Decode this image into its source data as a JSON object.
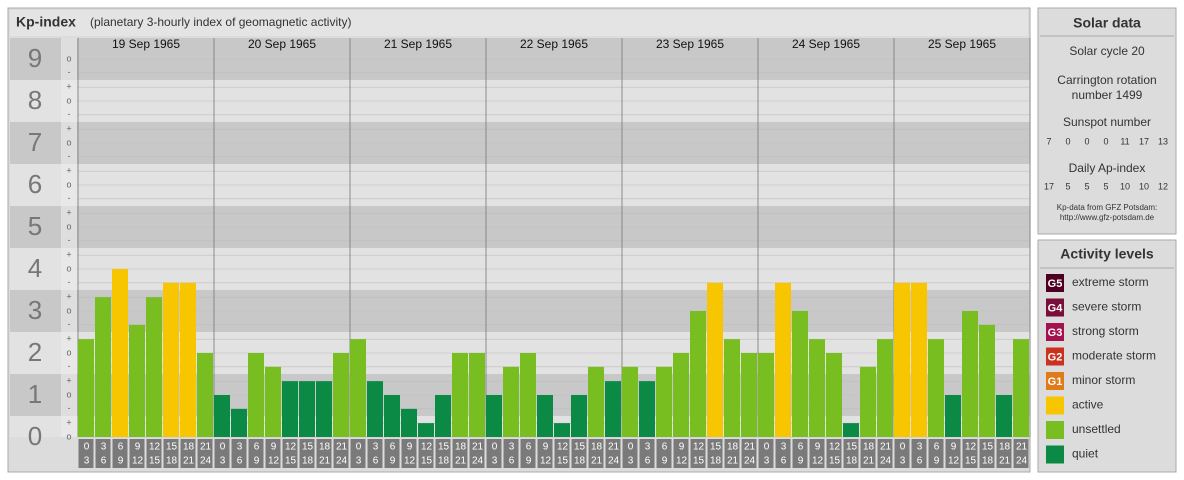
{
  "chart_data": {
    "type": "bar",
    "title": "Kp-index",
    "subtitle": "(planetary 3-hourly index of geomagnetic activity)",
    "ylim": [
      0,
      9.5
    ],
    "yticks": [
      {
        "value": 0,
        "label": "o"
      },
      {
        "value": 0.33,
        "label": "+"
      },
      {
        "value": 0.67,
        "label": "-"
      },
      {
        "value": 1,
        "label": "o"
      },
      {
        "value": 1.33,
        "label": "+"
      },
      {
        "value": 1.67,
        "label": "-"
      },
      {
        "value": 2,
        "label": "o"
      },
      {
        "value": 2.33,
        "label": "+"
      },
      {
        "value": 2.67,
        "label": "-"
      },
      {
        "value": 3,
        "label": "o"
      },
      {
        "value": 3.33,
        "label": "+"
      },
      {
        "value": 3.67,
        "label": "-"
      },
      {
        "value": 4,
        "label": "o"
      },
      {
        "value": 4.33,
        "label": "+"
      },
      {
        "value": 4.67,
        "label": "-"
      },
      {
        "value": 5,
        "label": "o"
      },
      {
        "value": 5.33,
        "label": "+"
      },
      {
        "value": 5.67,
        "label": "-"
      },
      {
        "value": 6,
        "label": "o"
      },
      {
        "value": 6.33,
        "label": "+"
      },
      {
        "value": 6.67,
        "label": "-"
      },
      {
        "value": 7,
        "label": "o"
      },
      {
        "value": 7.33,
        "label": "+"
      },
      {
        "value": 7.67,
        "label": "-"
      },
      {
        "value": 8,
        "label": "o"
      },
      {
        "value": 8.33,
        "label": "+"
      },
      {
        "value": 8.67,
        "label": "-"
      },
      {
        "value": 9,
        "label": "o"
      }
    ],
    "major_yticks": [
      0,
      1,
      2,
      3,
      4,
      5,
      6,
      7,
      8,
      9
    ],
    "hours_start": [
      0,
      3,
      6,
      9,
      12,
      15,
      18,
      21
    ],
    "hours_end": [
      3,
      6,
      9,
      12,
      15,
      18,
      21,
      24
    ],
    "days": [
      {
        "date": "19 Sep 1965",
        "values": [
          2.33,
          3.33,
          4,
          2.67,
          3.33,
          3.67,
          3.67,
          2
        ],
        "colors": [
          "#78be21",
          "#78be21",
          "#f7c600",
          "#78be21",
          "#78be21",
          "#f7c600",
          "#f7c600",
          "#78be21"
        ]
      },
      {
        "date": "20 Sep 1965",
        "values": [
          1,
          0.67,
          2,
          1.67,
          1.33,
          1.33,
          1.33,
          2
        ],
        "colors": [
          "#0b8a45",
          "#0b8a45",
          "#78be21",
          "#78be21",
          "#0b8a45",
          "#0b8a45",
          "#0b8a45",
          "#78be21"
        ]
      },
      {
        "date": "21 Sep 1965",
        "values": [
          2.33,
          1.33,
          1,
          0.67,
          0.33,
          1,
          2,
          2
        ],
        "colors": [
          "#78be21",
          "#0b8a45",
          "#0b8a45",
          "#0b8a45",
          "#0b8a45",
          "#0b8a45",
          "#78be21",
          "#78be21"
        ]
      },
      {
        "date": "22 Sep 1965",
        "values": [
          1,
          1.67,
          2,
          1,
          0.33,
          1,
          1.67,
          1.33
        ],
        "colors": [
          "#0b8a45",
          "#78be21",
          "#78be21",
          "#0b8a45",
          "#0b8a45",
          "#0b8a45",
          "#78be21",
          "#0b8a45"
        ]
      },
      {
        "date": "23 Sep 1965",
        "values": [
          1.67,
          1.33,
          1.67,
          2,
          3,
          3.67,
          2.33,
          2
        ],
        "colors": [
          "#78be21",
          "#0b8a45",
          "#78be21",
          "#78be21",
          "#78be21",
          "#f7c600",
          "#78be21",
          "#78be21"
        ]
      },
      {
        "date": "24 Sep 1965",
        "values": [
          2,
          3.67,
          3,
          2.33,
          2,
          0.33,
          1.67,
          2.33
        ],
        "colors": [
          "#78be21",
          "#f7c600",
          "#78be21",
          "#78be21",
          "#78be21",
          "#0b8a45",
          "#78be21",
          "#78be21"
        ]
      },
      {
        "date": "25 Sep 1965",
        "values": [
          3.67,
          3.67,
          2.33,
          1,
          3,
          2.67,
          1,
          2.33
        ],
        "colors": [
          "#f7c600",
          "#f7c600",
          "#78be21",
          "#0b8a45",
          "#78be21",
          "#78be21",
          "#0b8a45",
          "#78be21"
        ]
      }
    ]
  },
  "solar_data": {
    "title": "Solar data",
    "solar_cycle": "Solar cycle 20",
    "carrington": [
      "Carrington rotation",
      "number 1499"
    ],
    "sunspot_label": "Sunspot number",
    "sunspot_numbers": [
      7,
      0,
      0,
      0,
      11,
      17,
      13
    ],
    "ap_label": "Daily Ap-index",
    "ap_index": [
      17,
      5,
      5,
      5,
      10,
      10,
      12
    ],
    "source": [
      "Kp-data from GFZ Potsdam:",
      "http://www.gfz-potsdam.de"
    ]
  },
  "activity_levels": {
    "title": "Activity levels",
    "items": [
      {
        "code": "G5",
        "label": "extreme storm",
        "color": "#4d0021"
      },
      {
        "code": "G4",
        "label": "severe storm",
        "color": "#7a0d3a"
      },
      {
        "code": "G3",
        "label": "strong storm",
        "color": "#a3124f"
      },
      {
        "code": "G2",
        "label": "moderate storm",
        "color": "#c9321f"
      },
      {
        "code": "G1",
        "label": "minor storm",
        "color": "#e07b1a"
      },
      {
        "label": "active",
        "color": "#f7c600"
      },
      {
        "label": "unsettled",
        "color": "#78be21"
      },
      {
        "label": "quiet",
        "color": "#0b8a45"
      }
    ]
  }
}
